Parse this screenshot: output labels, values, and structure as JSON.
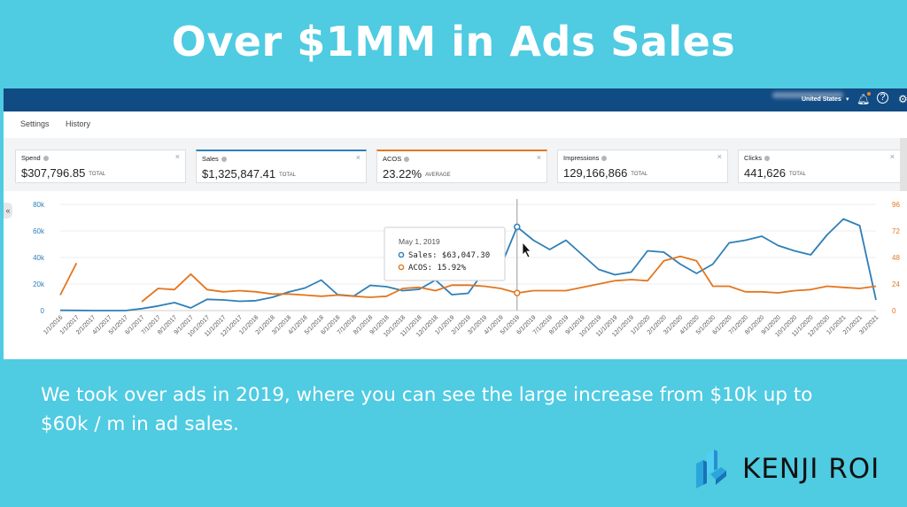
{
  "slide": {
    "title": "Over $1MM in Ads Sales",
    "caption": "We took over ads in 2019, where you can see the large increase from $10k up to $60k / m in ad sales.",
    "logo_text": "KENJI ROI"
  },
  "app": {
    "country": "United States",
    "icons": [
      "bell-icon",
      "help-icon",
      "settings-icon"
    ],
    "subnav": [
      "Settings",
      "History"
    ],
    "metrics": [
      {
        "label": "Spend",
        "value": "$307,796.85",
        "unit": "TOTAL"
      },
      {
        "label": "Sales",
        "value": "$1,325,847.41",
        "unit": "TOTAL"
      },
      {
        "label": "ACOS",
        "value": "23.22%",
        "unit": "AVERAGE"
      },
      {
        "label": "Impressions",
        "value": "129,166,866",
        "unit": "TOTAL"
      },
      {
        "label": "Clicks",
        "value": "441,626",
        "unit": "TOTAL"
      }
    ],
    "collapse_glyph": "«"
  },
  "tooltip": {
    "date": "May 1, 2019",
    "sales": "Sales: $63,047.30",
    "acos": "ACOS: 15.92%"
  },
  "colors": {
    "sales": "#2e7fb8",
    "acos": "#e3761f",
    "background": "#4fcbe2",
    "topbar": "#114b83"
  },
  "chart_data": {
    "type": "line",
    "x": [
      "1/1/2016",
      "1/1/2017",
      "2/1/2017",
      "4/1/2017",
      "5/1/2017",
      "6/1/2017",
      "7/1/2017",
      "8/1/2017",
      "9/1/2017",
      "10/1/2017",
      "11/1/2017",
      "12/1/2017",
      "1/1/2018",
      "2/1/2018",
      "3/1/2018",
      "4/1/2018",
      "5/1/2018",
      "6/1/2018",
      "7/1/2018",
      "8/1/2018",
      "9/1/2018",
      "10/1/2018",
      "11/1/2018",
      "12/1/2018",
      "1/1/2019",
      "2/1/2019",
      "3/1/2019",
      "4/1/2019",
      "5/1/2019",
      "6/1/2019",
      "7/1/2019",
      "8/1/2019",
      "9/1/2019",
      "10/1/2019",
      "11/1/2019",
      "12/1/2019",
      "1/1/2020",
      "2/1/2020",
      "3/1/2020",
      "4/1/2020",
      "5/1/2020",
      "6/1/2020",
      "7/1/2020",
      "8/1/2020",
      "9/1/2020",
      "10/1/2020",
      "11/1/2020",
      "12/1/2020",
      "1/1/2021",
      "2/1/2021",
      "3/1/2021"
    ],
    "series": [
      {
        "name": "Sales",
        "axis": "left",
        "values": [
          200,
          100,
          0,
          0,
          0,
          1500,
          3500,
          6000,
          2000,
          8500,
          8000,
          7000,
          7500,
          10000,
          14000,
          17000,
          23000,
          12000,
          11000,
          19000,
          18000,
          15000,
          16000,
          23000,
          12000,
          13000,
          30000,
          33000,
          63047.3,
          53000,
          46000,
          53000,
          42000,
          31000,
          27000,
          29000,
          45000,
          44000,
          35000,
          28000,
          35000,
          51000,
          53000,
          56000,
          49000,
          45000,
          42000,
          57000,
          69000,
          64000,
          8000
        ]
      },
      {
        "name": "ACOS",
        "axis": "right",
        "values": [
          14,
          43,
          null,
          null,
          null,
          8,
          20,
          19,
          33,
          19,
          17,
          18,
          17,
          15,
          15,
          14,
          13,
          14,
          13,
          12,
          13,
          20,
          21,
          18,
          23,
          23,
          22,
          20,
          15.92,
          18,
          18,
          18,
          21,
          24,
          27,
          28,
          27,
          45,
          49,
          45,
          22,
          22,
          17,
          17,
          16,
          18,
          19,
          22,
          21,
          20,
          22
        ]
      }
    ],
    "y_left": {
      "ticks": [
        "0",
        "20k",
        "40k",
        "60k",
        "80k"
      ],
      "range": [
        0,
        80000
      ]
    },
    "y_right": {
      "ticks": [
        "0",
        "24",
        "48",
        "72",
        "96"
      ],
      "range": [
        0,
        96
      ]
    },
    "highlight_index": 28,
    "grid": true,
    "legend": "none"
  }
}
